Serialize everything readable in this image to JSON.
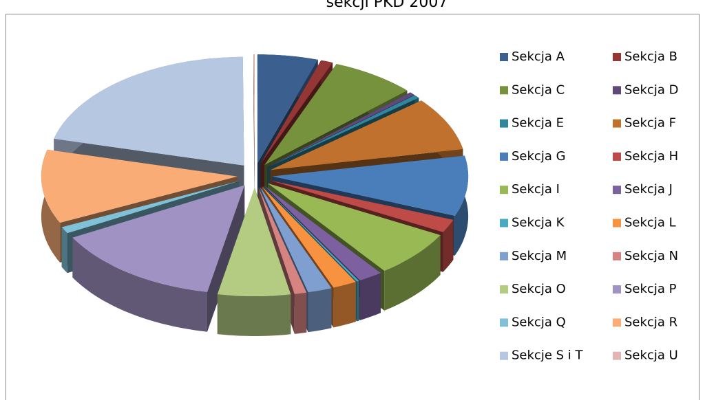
{
  "chart_data": {
    "type": "pie3d",
    "title": "sekcji PKD 2007",
    "categories": [
      "Sekcja A",
      "Sekcja B",
      "Sekcja C",
      "Sekcja D",
      "Sekcja E",
      "Sekcja F",
      "Sekcja G",
      "Sekcja H",
      "Sekcja I",
      "Sekcja J",
      "Sekcja K",
      "Sekcja L",
      "Sekcja M",
      "Sekcja N",
      "Sekcja O",
      "Sekcja P",
      "Sekcja Q",
      "Sekcja R",
      "Sekcje S i T",
      "Sekcja U"
    ],
    "values": [
      5,
      1,
      7,
      0.5,
      0.5,
      8,
      9,
      2,
      7,
      2,
      0.2,
      2,
      2,
      1,
      6,
      14,
      1,
      11,
      21,
      0.1
    ],
    "colors": [
      "#3b5f8f",
      "#943634",
      "#77923c",
      "#5f497a",
      "#31859c",
      "#c0712e",
      "#4a7ebb",
      "#be4b48",
      "#98b954",
      "#7d60a0",
      "#46aac5",
      "#f69240",
      "#7f9fd0",
      "#d58482",
      "#b3cc82",
      "#a092c3",
      "#80c1d8",
      "#f9ac75",
      "#b6c7e2",
      "#e2b6b4"
    ],
    "legend": "right"
  }
}
